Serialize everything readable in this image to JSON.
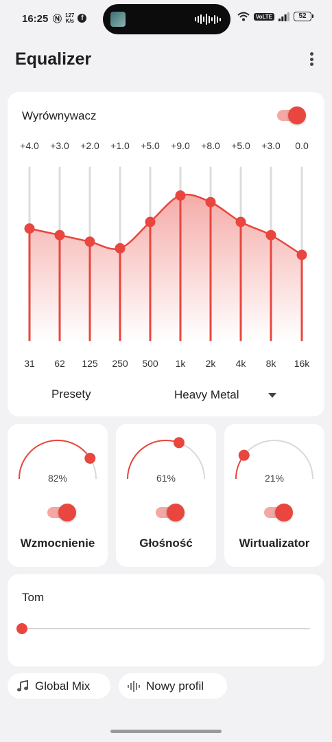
{
  "status_bar": {
    "time": "16:25",
    "network_speed_value": "127",
    "network_speed_unit": "K/s",
    "battery": "52"
  },
  "header": {
    "title": "Equalizer"
  },
  "equalizer": {
    "title": "Wyrównywacz",
    "enabled": true,
    "bands": [
      {
        "freq": "31",
        "gain_label": "+4.0"
      },
      {
        "freq": "62",
        "gain_label": "+3.0"
      },
      {
        "freq": "125",
        "gain_label": "+2.0"
      },
      {
        "freq": "250",
        "gain_label": "+1.0"
      },
      {
        "freq": "500",
        "gain_label": "+5.0"
      },
      {
        "freq": "1k",
        "gain_label": "+9.0"
      },
      {
        "freq": "2k",
        "gain_label": "+8.0"
      },
      {
        "freq": "4k",
        "gain_label": "+5.0"
      },
      {
        "freq": "8k",
        "gain_label": "+3.0"
      },
      {
        "freq": "16k",
        "gain_label": "0.0"
      }
    ],
    "gain_values": [
      4.0,
      3.0,
      2.0,
      1.0,
      5.0,
      9.0,
      8.0,
      5.0,
      3.0,
      0.0
    ],
    "presets_label": "Presety",
    "preset_selected": "Heavy Metal"
  },
  "knobs": [
    {
      "name": "Wzmocnienie",
      "value_label": "82%",
      "value": 0.82,
      "enabled": true
    },
    {
      "name": "Głośność",
      "value_label": "61%",
      "value": 0.61,
      "enabled": true
    },
    {
      "name": "Wirtualizator",
      "value_label": "21%",
      "value": 0.21,
      "enabled": true
    }
  ],
  "tom": {
    "title": "Tom",
    "value": 0.0
  },
  "chips": [
    {
      "label": "Global Mix",
      "icon": "music-note-icon"
    },
    {
      "label": "Nowy profil",
      "icon": "waveform-icon"
    }
  ],
  "colors": {
    "accent": "#e8463e",
    "accent_light": "#f3a8a3",
    "background": "#f2f2f4",
    "card": "#ffffff"
  }
}
